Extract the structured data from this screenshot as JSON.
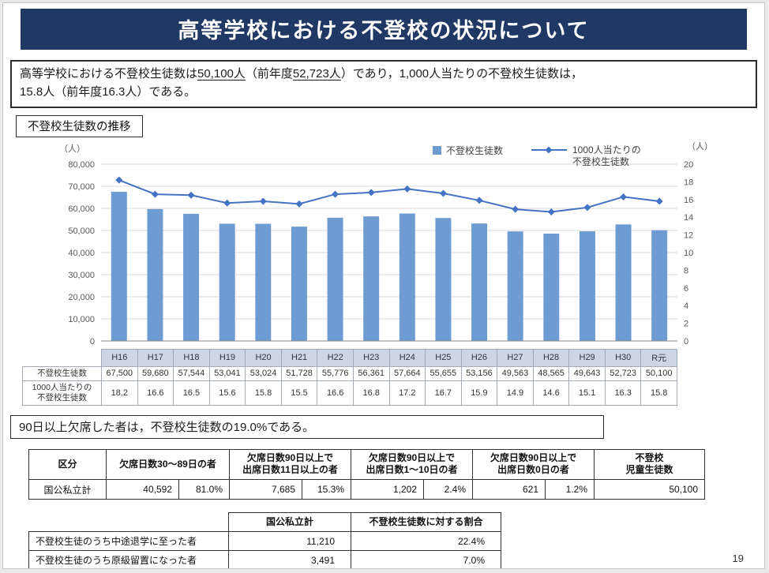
{
  "page": {
    "number": "19"
  },
  "title": "高等学校における不登校の状況について",
  "summary": {
    "segments": [
      {
        "text": "高等学校における不登校生徒数は"
      },
      {
        "text": "50,100人",
        "underline": true
      },
      {
        "text": "（前年度"
      },
      {
        "text": "52,723人",
        "underline": true
      },
      {
        "text": "）であり，1,000人当たりの不登校生徒数は，"
      },
      {
        "text": "15.8人（前年度16.3人）である。",
        "newline": true
      }
    ]
  },
  "chart_section": {
    "label": "不登校生徒数の推移"
  },
  "chart_data": {
    "type": "bar+line",
    "title": "不登校生徒数の推移",
    "categories": [
      "H16",
      "H17",
      "H18",
      "H19",
      "H20",
      "H21",
      "H22",
      "H23",
      "H24",
      "H25",
      "H26",
      "H27",
      "H28",
      "H29",
      "H30",
      "R元"
    ],
    "series": [
      {
        "name": "不登校生徒数",
        "type": "bar",
        "axis": "left",
        "color": "#6e9cd2",
        "values": [
          67500,
          59680,
          57544,
          53041,
          53024,
          51728,
          55776,
          56361,
          57664,
          55655,
          53156,
          49563,
          48565,
          49643,
          52723,
          50100
        ]
      },
      {
        "name": "1000人当たりの不登校生徒数",
        "type": "line",
        "axis": "right",
        "color": "#4472c4",
        "values": [
          18.2,
          16.6,
          16.5,
          15.6,
          15.8,
          15.5,
          16.6,
          16.8,
          17.2,
          16.7,
          15.9,
          14.9,
          14.6,
          15.1,
          16.3,
          15.8
        ]
      }
    ],
    "left_axis": {
      "unit": "（人）",
      "min": 0,
      "max": 80000,
      "ticks": [
        "0",
        "10,000",
        "20,000",
        "30,000",
        "40,000",
        "50,000",
        "60,000",
        "70,000",
        "80,000"
      ]
    },
    "right_axis": {
      "unit": "（人）",
      "min": 0,
      "max": 20,
      "ticks": [
        "0",
        "2",
        "4",
        "6",
        "8",
        "10",
        "12",
        "14",
        "16",
        "18",
        "20"
      ]
    },
    "legend": [
      {
        "label": "不登校生徒数",
        "symbol": "square"
      },
      {
        "label_lines": [
          "1000人当たりの",
          "不登校生徒数"
        ],
        "symbol": "line-diamond"
      }
    ],
    "grid": true
  },
  "chart_table": {
    "rows": [
      {
        "header_lines": [
          "不登校生徒数"
        ],
        "values": [
          "67,500",
          "59,680",
          "57,544",
          "53,041",
          "53,024",
          "51,728",
          "55,776",
          "56,361",
          "57,664",
          "55,655",
          "53,156",
          "49,563",
          "48,565",
          "49,643",
          "52,723",
          "50,100"
        ]
      },
      {
        "header_lines": [
          "1000人当たりの",
          "不登校生徒数"
        ],
        "values": [
          "18.2",
          "16.6",
          "16.5",
          "15.6",
          "15.8",
          "15.5",
          "16.6",
          "16.8",
          "17.2",
          "16.7",
          "15.9",
          "14.9",
          "14.6",
          "15.1",
          "16.3",
          "15.8"
        ]
      }
    ]
  },
  "statement": "90日以上欠席した者は，不登校生徒数の19.0%である。",
  "absence_table": {
    "headers": [
      {
        "lines": [
          "区分"
        ],
        "colspan": 1
      },
      {
        "lines": [
          "欠席日数30～89日の者"
        ],
        "colspan": 2
      },
      {
        "lines": [
          "欠席日数90日以上で",
          "出席日数11日以上の者"
        ],
        "colspan": 2
      },
      {
        "lines": [
          "欠席日数90日以上で",
          "出席日数1～10日の者"
        ],
        "colspan": 2
      },
      {
        "lines": [
          "欠席日数90日以上で",
          "出席日数0日の者"
        ],
        "colspan": 2
      },
      {
        "lines": [
          "不登校",
          "児童生徒数"
        ],
        "colspan": 1
      }
    ],
    "row": {
      "label": "国公私立計",
      "cells": [
        "40,592",
        "81.0%",
        "7,685",
        "15.3%",
        "1,202",
        "2.4%",
        "621",
        "1.2%"
      ],
      "total": "50,100"
    }
  },
  "outcome_table": {
    "headers": [
      "",
      "国公私立計",
      "不登校生徒数に対する割合"
    ],
    "rows": [
      {
        "label": "不登校生徒のうち中途退学に至った者",
        "count": "11,210",
        "rate": "22.4%"
      },
      {
        "label": "不登校生徒のうち原級留置になった者",
        "count": "3,491",
        "rate": "7.0%"
      }
    ]
  }
}
